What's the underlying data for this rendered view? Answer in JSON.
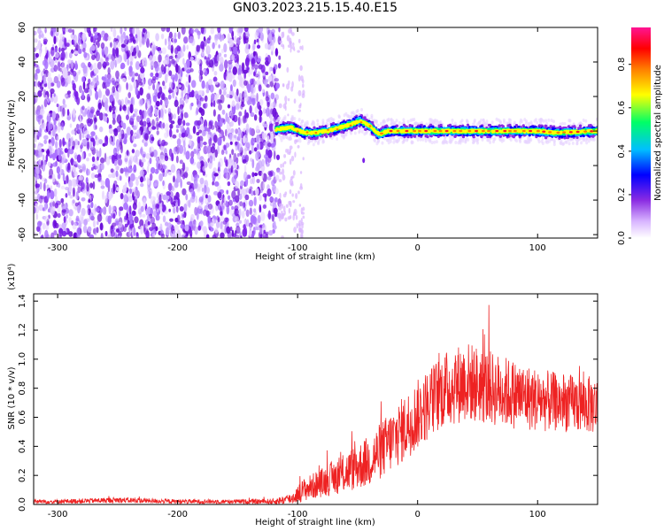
{
  "figure_title": "GN03.2023.215.15.40.E15",
  "colors": {
    "snr_line": "#ee2222",
    "noise_purple": "#7a1fe8",
    "signal_red": "#ff2020",
    "axis": "#000000"
  },
  "chart_data": [
    {
      "type": "heatmap",
      "title": "",
      "xlabel": "Height of straight line (km)",
      "ylabel": "Frequency (Hz)",
      "xlim": [
        -320,
        150
      ],
      "ylim": [
        -62,
        60
      ],
      "x_ticks": [
        -300,
        -200,
        -100,
        0,
        100
      ],
      "y_ticks": [
        -60,
        -40,
        -20,
        0,
        20,
        40,
        60
      ],
      "colorbar": {
        "label": "Normalized spectral amplitude",
        "range": [
          0,
          0.97
        ],
        "ticks": [
          0.0,
          0.2,
          0.4,
          0.6,
          0.8
        ],
        "colormap": [
          "#ffffff",
          "#d8b4ff",
          "#8a2be2",
          "#0000ff",
          "#00bfff",
          "#00ff66",
          "#ffff00",
          "#ff8000",
          "#ff0000",
          "#ff1493"
        ]
      },
      "features": {
        "noise_region_x": [
          -320,
          -115
        ],
        "sparse_region_x": [
          -115,
          -95
        ],
        "signal_band_frequency": 0,
        "signal_band_start_x": -118,
        "signal_path": [
          [
            -118,
            1
          ],
          [
            -105,
            2
          ],
          [
            -95,
            -1
          ],
          [
            -85,
            -1
          ],
          [
            -75,
            0
          ],
          [
            -65,
            2
          ],
          [
            -55,
            4
          ],
          [
            -48,
            6
          ],
          [
            -40,
            3
          ],
          [
            -32,
            -2
          ],
          [
            -25,
            0
          ],
          [
            0,
            0
          ],
          [
            50,
            0
          ],
          [
            100,
            0
          ],
          [
            115,
            -1
          ],
          [
            150,
            0
          ]
        ]
      }
    },
    {
      "type": "line",
      "title": "",
      "xlabel": "Height of straight line (km)",
      "ylabel": "SNR (10 * v/v)",
      "y_multiplier_label": "(x10⁴)",
      "xlim": [
        -320,
        150
      ],
      "ylim": [
        0,
        1.45
      ],
      "x_ticks": [
        -300,
        -200,
        -100,
        0,
        100
      ],
      "y_ticks": [
        0.0,
        0.2,
        0.4,
        0.6,
        0.8,
        1.0,
        1.2,
        1.4
      ],
      "series": [
        {
          "envelope_x": [
            -320,
            -300,
            -250,
            -200,
            -150,
            -120,
            -105,
            -95,
            -80,
            -60,
            -40,
            -20,
            0,
            20,
            40,
            60,
            80,
            100,
            120,
            150
          ],
          "envelope_mean": [
            0.02,
            0.02,
            0.03,
            0.02,
            0.02,
            0.02,
            0.04,
            0.1,
            0.15,
            0.22,
            0.3,
            0.45,
            0.62,
            0.78,
            0.85,
            0.8,
            0.76,
            0.72,
            0.7,
            0.68
          ],
          "envelope_spread": [
            0.015,
            0.015,
            0.02,
            0.015,
            0.015,
            0.02,
            0.04,
            0.08,
            0.1,
            0.14,
            0.18,
            0.22,
            0.24,
            0.26,
            0.28,
            0.26,
            0.24,
            0.22,
            0.2,
            0.2
          ]
        }
      ]
    }
  ]
}
